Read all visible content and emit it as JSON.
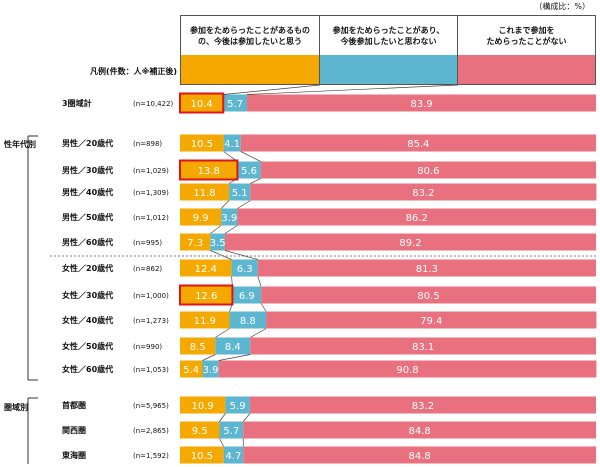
{
  "unit_note": "（構成比：%）",
  "legend": {
    "title": "凡例(件数：人※補正後)",
    "items": [
      {
        "label_line1": "参加をためらったことがあるもの",
        "label_line2": "の、今後は参加したいと思う",
        "color": "#f5a800"
      },
      {
        "label_line1": "参加をためらったことがあり、",
        "label_line2": "今後参加したいと思わない",
        "color": "#5db6d0"
      },
      {
        "label_line1": "これまで参加を",
        "label_line2": "ためらったことがない",
        "color": "#e8707f"
      }
    ]
  },
  "groups": {
    "gender_age": "性年代別",
    "region": "圏域別"
  },
  "chart_data": {
    "type": "bar",
    "orientation": "horizontal",
    "stacked": true,
    "unit": "%",
    "series": [
      {
        "name": "参加をためらったことがあるものの、今後は参加したいと思う",
        "color": "#f5a800",
        "values": [
          10.4,
          10.5,
          13.8,
          11.8,
          9.9,
          7.3,
          12.4,
          12.6,
          11.9,
          8.5,
          5.4,
          10.9,
          9.5,
          10.5
        ]
      },
      {
        "name": "参加をためらったことがあり、今後参加したいと思わない",
        "color": "#5db6d0",
        "values": [
          5.7,
          4.1,
          5.6,
          5.1,
          3.9,
          3.5,
          6.3,
          6.9,
          8.8,
          8.4,
          3.9,
          5.9,
          5.7,
          4.7
        ]
      },
      {
        "name": "これまで参加をためらったことがない",
        "color": "#e8707f",
        "values": [
          83.9,
          85.4,
          80.6,
          83.2,
          86.2,
          89.2,
          81.3,
          80.5,
          79.4,
          83.1,
          90.8,
          83.2,
          84.8,
          84.8
        ]
      }
    ],
    "categories": [
      "3圏域計",
      "男性／20歳代",
      "男性／30歳代",
      "男性／40歳代",
      "男性／50歳代",
      "男性／60歳代",
      "女性／20歳代",
      "女性／30歳代",
      "女性／40歳代",
      "女性／50歳代",
      "女性／60歳代",
      "首都圏",
      "関西圏",
      "東海圏"
    ],
    "n_labels": [
      "(n=10,422)",
      "(n=898)",
      "(n=1,029)",
      "(n=1,309)",
      "(n=1,012)",
      "(n=995)",
      "(n=862)",
      "(n=1,000)",
      "(n=1,273)",
      "(n=990)",
      "(n=1,053)",
      "(n=5,965)",
      "(n=2,865)",
      "(n=1,592)"
    ],
    "highlighted": [
      "3圏域計",
      "男性／30歳代",
      "女性／30歳代"
    ],
    "xlim": [
      0,
      100
    ],
    "highlight_color": "#e0141e"
  }
}
